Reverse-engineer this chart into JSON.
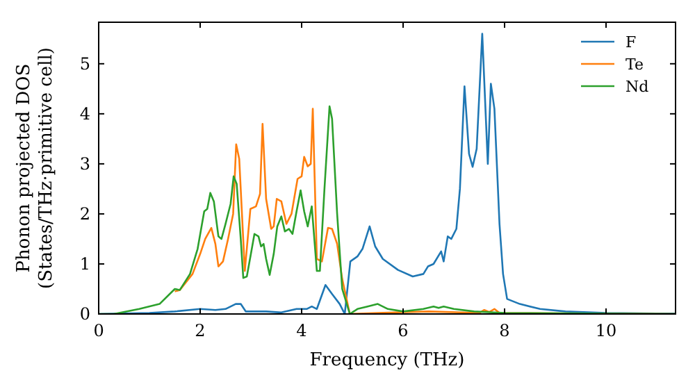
{
  "chart_data": {
    "type": "line",
    "xlabel": "Frequency (THz)",
    "ylabel": "Phonon projected DOS\n(States/THz·primitive cell)",
    "xlim": [
      0,
      11.37
    ],
    "ylim": [
      0,
      5.83
    ],
    "xticks": [
      0,
      2,
      4,
      6,
      8,
      10
    ],
    "yticks": [
      0,
      1,
      2,
      3,
      4,
      5
    ],
    "grid": false,
    "legend": "top right",
    "line_style": "solid",
    "marker": "none",
    "series": [
      {
        "name": "F",
        "color": "#1f77b4",
        "x": [
          0,
          1,
          1.5,
          2,
          2.3,
          2.5,
          2.7,
          2.8,
          2.9,
          3.0,
          3.3,
          3.6,
          3.9,
          4.1,
          4.2,
          4.3,
          4.47,
          4.6,
          4.75,
          4.85,
          4.96,
          5.1,
          5.2,
          5.34,
          5.45,
          5.6,
          5.9,
          6.19,
          6.4,
          6.49,
          6.6,
          6.75,
          6.8,
          6.88,
          6.95,
          7.05,
          7.12,
          7.21,
          7.3,
          7.37,
          7.45,
          7.56,
          7.67,
          7.73,
          7.8,
          7.9,
          7.97,
          8.05,
          8.3,
          8.7,
          9.2,
          10,
          11,
          11.37
        ],
        "values": [
          0,
          0.02,
          0.05,
          0.1,
          0.08,
          0.1,
          0.2,
          0.2,
          0.05,
          0.05,
          0.05,
          0.03,
          0.1,
          0.1,
          0.15,
          0.1,
          0.58,
          0.4,
          0.2,
          0,
          1.05,
          1.15,
          1.3,
          1.75,
          1.35,
          1.1,
          0.88,
          0.75,
          0.8,
          0.95,
          1.0,
          1.25,
          1.05,
          1.55,
          1.5,
          1.7,
          2.5,
          4.55,
          3.2,
          2.94,
          3.3,
          5.6,
          3.0,
          4.6,
          4.1,
          1.8,
          0.8,
          0.3,
          0.2,
          0.1,
          0.05,
          0.02,
          0.01,
          0.01
        ]
      },
      {
        "name": "Te",
        "color": "#ff7f0e",
        "x": [
          1.5,
          1.6,
          1.85,
          2.0,
          2.1,
          2.22,
          2.3,
          2.36,
          2.45,
          2.55,
          2.65,
          2.71,
          2.77,
          2.88,
          2.99,
          3.1,
          3.18,
          3.23,
          3.3,
          3.4,
          3.45,
          3.51,
          3.6,
          3.7,
          3.8,
          3.92,
          4.0,
          4.05,
          4.12,
          4.18,
          4.22,
          4.3,
          4.4,
          4.52,
          4.6,
          4.7,
          4.8,
          4.95,
          5.5,
          6.5,
          7.5,
          7.6,
          7.7,
          7.8,
          7.9,
          11.37
        ],
        "values": [
          0.45,
          0.48,
          0.8,
          1.2,
          1.5,
          1.72,
          1.4,
          0.95,
          1.05,
          1.5,
          2.0,
          3.39,
          3.1,
          0.86,
          2.1,
          2.15,
          2.4,
          3.8,
          2.3,
          1.7,
          1.75,
          2.3,
          2.25,
          1.8,
          2.0,
          2.7,
          2.75,
          3.14,
          2.95,
          3.0,
          4.1,
          1.1,
          1.05,
          1.72,
          1.7,
          1.4,
          0.7,
          0,
          0.02,
          0.05,
          0.02,
          0.08,
          0.04,
          0.1,
          0.02,
          0
        ]
      },
      {
        "name": "Nd",
        "color": "#2ca02c",
        "x": [
          0,
          0.3,
          0.8,
          1.2,
          1.5,
          1.6,
          1.8,
          1.95,
          2.08,
          2.14,
          2.2,
          2.27,
          2.36,
          2.42,
          2.5,
          2.6,
          2.66,
          2.72,
          2.8,
          2.85,
          2.92,
          3.0,
          3.07,
          3.15,
          3.2,
          3.25,
          3.3,
          3.37,
          3.45,
          3.52,
          3.6,
          3.67,
          3.75,
          3.82,
          3.9,
          3.98,
          4.05,
          4.12,
          4.2,
          4.3,
          4.36,
          4.45,
          4.55,
          4.6,
          4.7,
          4.8,
          4.95,
          5.1,
          5.3,
          5.5,
          5.7,
          6.0,
          6.4,
          6.6,
          6.7,
          6.8,
          7.0,
          7.4,
          8,
          11.37
        ],
        "values": [
          0,
          0,
          0.1,
          0.2,
          0.5,
          0.48,
          0.8,
          1.3,
          2.05,
          2.1,
          2.42,
          2.25,
          1.55,
          1.5,
          1.8,
          2.2,
          2.75,
          2.6,
          1.5,
          0.72,
          0.75,
          1.2,
          1.6,
          1.55,
          1.35,
          1.4,
          1.1,
          0.78,
          1.2,
          1.75,
          1.95,
          1.65,
          1.7,
          1.6,
          2.05,
          2.47,
          2.05,
          1.75,
          2.15,
          0.86,
          0.86,
          2.5,
          4.15,
          3.9,
          2.0,
          0.5,
          0,
          0.1,
          0.15,
          0.2,
          0.1,
          0.05,
          0.1,
          0.15,
          0.12,
          0.15,
          0.1,
          0.05,
          0.02,
          0
        ]
      }
    ]
  }
}
